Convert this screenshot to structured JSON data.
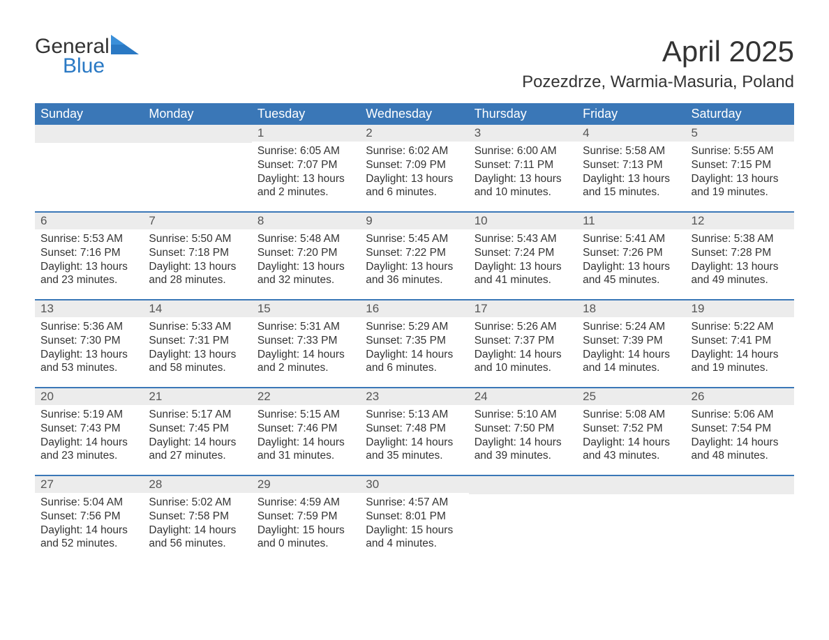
{
  "brand": {
    "word1": "General",
    "word2": "Blue"
  },
  "title": "April 2025",
  "location": "Pozezdrze, Warmia-Masuria, Poland",
  "colors": {
    "header_bg": "#3a77b7",
    "header_text": "#ffffff",
    "daynum_bg": "#ececec",
    "daynum_text": "#555555",
    "row_border": "#3a77b7",
    "body_text": "#333333",
    "brand_blue": "#2a79c4",
    "page_bg": "#ffffff"
  },
  "fonts": {
    "family": "Segoe UI, Arial, sans-serif",
    "title_size_pt": 32,
    "location_size_pt": 18,
    "weekday_size_pt": 14,
    "daynum_size_pt": 13,
    "body_size_pt": 12
  },
  "weekdays": [
    "Sunday",
    "Monday",
    "Tuesday",
    "Wednesday",
    "Thursday",
    "Friday",
    "Saturday"
  ],
  "weeks": [
    [
      {
        "day": "",
        "sunrise": "",
        "sunset": "",
        "daylight1": "",
        "daylight2": ""
      },
      {
        "day": "",
        "sunrise": "",
        "sunset": "",
        "daylight1": "",
        "daylight2": ""
      },
      {
        "day": "1",
        "sunrise": "Sunrise: 6:05 AM",
        "sunset": "Sunset: 7:07 PM",
        "daylight1": "Daylight: 13 hours",
        "daylight2": "and 2 minutes."
      },
      {
        "day": "2",
        "sunrise": "Sunrise: 6:02 AM",
        "sunset": "Sunset: 7:09 PM",
        "daylight1": "Daylight: 13 hours",
        "daylight2": "and 6 minutes."
      },
      {
        "day": "3",
        "sunrise": "Sunrise: 6:00 AM",
        "sunset": "Sunset: 7:11 PM",
        "daylight1": "Daylight: 13 hours",
        "daylight2": "and 10 minutes."
      },
      {
        "day": "4",
        "sunrise": "Sunrise: 5:58 AM",
        "sunset": "Sunset: 7:13 PM",
        "daylight1": "Daylight: 13 hours",
        "daylight2": "and 15 minutes."
      },
      {
        "day": "5",
        "sunrise": "Sunrise: 5:55 AM",
        "sunset": "Sunset: 7:15 PM",
        "daylight1": "Daylight: 13 hours",
        "daylight2": "and 19 minutes."
      }
    ],
    [
      {
        "day": "6",
        "sunrise": "Sunrise: 5:53 AM",
        "sunset": "Sunset: 7:16 PM",
        "daylight1": "Daylight: 13 hours",
        "daylight2": "and 23 minutes."
      },
      {
        "day": "7",
        "sunrise": "Sunrise: 5:50 AM",
        "sunset": "Sunset: 7:18 PM",
        "daylight1": "Daylight: 13 hours",
        "daylight2": "and 28 minutes."
      },
      {
        "day": "8",
        "sunrise": "Sunrise: 5:48 AM",
        "sunset": "Sunset: 7:20 PM",
        "daylight1": "Daylight: 13 hours",
        "daylight2": "and 32 minutes."
      },
      {
        "day": "9",
        "sunrise": "Sunrise: 5:45 AM",
        "sunset": "Sunset: 7:22 PM",
        "daylight1": "Daylight: 13 hours",
        "daylight2": "and 36 minutes."
      },
      {
        "day": "10",
        "sunrise": "Sunrise: 5:43 AM",
        "sunset": "Sunset: 7:24 PM",
        "daylight1": "Daylight: 13 hours",
        "daylight2": "and 41 minutes."
      },
      {
        "day": "11",
        "sunrise": "Sunrise: 5:41 AM",
        "sunset": "Sunset: 7:26 PM",
        "daylight1": "Daylight: 13 hours",
        "daylight2": "and 45 minutes."
      },
      {
        "day": "12",
        "sunrise": "Sunrise: 5:38 AM",
        "sunset": "Sunset: 7:28 PM",
        "daylight1": "Daylight: 13 hours",
        "daylight2": "and 49 minutes."
      }
    ],
    [
      {
        "day": "13",
        "sunrise": "Sunrise: 5:36 AM",
        "sunset": "Sunset: 7:30 PM",
        "daylight1": "Daylight: 13 hours",
        "daylight2": "and 53 minutes."
      },
      {
        "day": "14",
        "sunrise": "Sunrise: 5:33 AM",
        "sunset": "Sunset: 7:31 PM",
        "daylight1": "Daylight: 13 hours",
        "daylight2": "and 58 minutes."
      },
      {
        "day": "15",
        "sunrise": "Sunrise: 5:31 AM",
        "sunset": "Sunset: 7:33 PM",
        "daylight1": "Daylight: 14 hours",
        "daylight2": "and 2 minutes."
      },
      {
        "day": "16",
        "sunrise": "Sunrise: 5:29 AM",
        "sunset": "Sunset: 7:35 PM",
        "daylight1": "Daylight: 14 hours",
        "daylight2": "and 6 minutes."
      },
      {
        "day": "17",
        "sunrise": "Sunrise: 5:26 AM",
        "sunset": "Sunset: 7:37 PM",
        "daylight1": "Daylight: 14 hours",
        "daylight2": "and 10 minutes."
      },
      {
        "day": "18",
        "sunrise": "Sunrise: 5:24 AM",
        "sunset": "Sunset: 7:39 PM",
        "daylight1": "Daylight: 14 hours",
        "daylight2": "and 14 minutes."
      },
      {
        "day": "19",
        "sunrise": "Sunrise: 5:22 AM",
        "sunset": "Sunset: 7:41 PM",
        "daylight1": "Daylight: 14 hours",
        "daylight2": "and 19 minutes."
      }
    ],
    [
      {
        "day": "20",
        "sunrise": "Sunrise: 5:19 AM",
        "sunset": "Sunset: 7:43 PM",
        "daylight1": "Daylight: 14 hours",
        "daylight2": "and 23 minutes."
      },
      {
        "day": "21",
        "sunrise": "Sunrise: 5:17 AM",
        "sunset": "Sunset: 7:45 PM",
        "daylight1": "Daylight: 14 hours",
        "daylight2": "and 27 minutes."
      },
      {
        "day": "22",
        "sunrise": "Sunrise: 5:15 AM",
        "sunset": "Sunset: 7:46 PM",
        "daylight1": "Daylight: 14 hours",
        "daylight2": "and 31 minutes."
      },
      {
        "day": "23",
        "sunrise": "Sunrise: 5:13 AM",
        "sunset": "Sunset: 7:48 PM",
        "daylight1": "Daylight: 14 hours",
        "daylight2": "and 35 minutes."
      },
      {
        "day": "24",
        "sunrise": "Sunrise: 5:10 AM",
        "sunset": "Sunset: 7:50 PM",
        "daylight1": "Daylight: 14 hours",
        "daylight2": "and 39 minutes."
      },
      {
        "day": "25",
        "sunrise": "Sunrise: 5:08 AM",
        "sunset": "Sunset: 7:52 PM",
        "daylight1": "Daylight: 14 hours",
        "daylight2": "and 43 minutes."
      },
      {
        "day": "26",
        "sunrise": "Sunrise: 5:06 AM",
        "sunset": "Sunset: 7:54 PM",
        "daylight1": "Daylight: 14 hours",
        "daylight2": "and 48 minutes."
      }
    ],
    [
      {
        "day": "27",
        "sunrise": "Sunrise: 5:04 AM",
        "sunset": "Sunset: 7:56 PM",
        "daylight1": "Daylight: 14 hours",
        "daylight2": "and 52 minutes."
      },
      {
        "day": "28",
        "sunrise": "Sunrise: 5:02 AM",
        "sunset": "Sunset: 7:58 PM",
        "daylight1": "Daylight: 14 hours",
        "daylight2": "and 56 minutes."
      },
      {
        "day": "29",
        "sunrise": "Sunrise: 4:59 AM",
        "sunset": "Sunset: 7:59 PM",
        "daylight1": "Daylight: 15 hours",
        "daylight2": "and 0 minutes."
      },
      {
        "day": "30",
        "sunrise": "Sunrise: 4:57 AM",
        "sunset": "Sunset: 8:01 PM",
        "daylight1": "Daylight: 15 hours",
        "daylight2": "and 4 minutes."
      },
      {
        "day": "",
        "sunrise": "",
        "sunset": "",
        "daylight1": "",
        "daylight2": ""
      },
      {
        "day": "",
        "sunrise": "",
        "sunset": "",
        "daylight1": "",
        "daylight2": ""
      },
      {
        "day": "",
        "sunrise": "",
        "sunset": "",
        "daylight1": "",
        "daylight2": ""
      }
    ]
  ]
}
